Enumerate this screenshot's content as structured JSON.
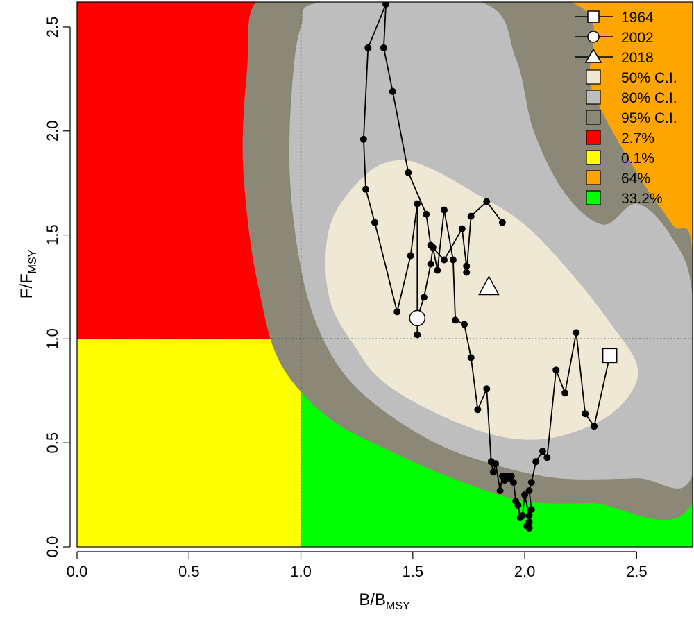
{
  "chart_data": {
    "type": "scatter",
    "subtype": "kobe-phase-plot",
    "xlabel": {
      "main": "B/B",
      "sub": "MSY"
    },
    "ylabel": {
      "main": "F/F",
      "sub": "MSY"
    },
    "xlim": [
      0,
      2.75
    ],
    "ylim": [
      0,
      2.62
    ],
    "x_ticks": [
      0.0,
      0.5,
      1.0,
      1.5,
      2.0,
      2.5
    ],
    "x_tick_labels": [
      "0.0",
      "0.5",
      "1.0",
      "1.5",
      "2.0",
      "2.5"
    ],
    "y_ticks": [
      0.0,
      0.5,
      1.0,
      1.5,
      2.0,
      2.5
    ],
    "y_tick_labels": [
      "0.0",
      "0.5",
      "1.0",
      "1.5",
      "2.0",
      "2.5"
    ],
    "reference_lines": {
      "x": 1.0,
      "y": 1.0,
      "style": "dotted"
    },
    "quadrants": [
      {
        "name": "overfished-overfishing",
        "color": "#ff0000",
        "percent_label": "2.7%"
      },
      {
        "name": "overfished-only",
        "color": "#ffff00",
        "percent_label": "0.1%"
      },
      {
        "name": "overfishing-only",
        "color": "#ffa500",
        "percent_label": "64%"
      },
      {
        "name": "healthy",
        "color": "#00ff00",
        "percent_label": "33.2%"
      }
    ],
    "confidence_regions": [
      {
        "label": "95% C.I.",
        "color": "#8b8878",
        "points": [
          [
            1.06,
            2.62
          ],
          [
            0.8,
            2.62
          ],
          [
            0.76,
            2.3
          ],
          [
            0.74,
            1.9
          ],
          [
            0.77,
            1.5
          ],
          [
            0.82,
            1.2
          ],
          [
            0.88,
            0.95
          ],
          [
            0.98,
            0.77
          ],
          [
            1.15,
            0.6
          ],
          [
            1.4,
            0.46
          ],
          [
            1.7,
            0.32
          ],
          [
            2.0,
            0.22
          ],
          [
            2.3,
            0.21
          ],
          [
            2.75,
            0.22
          ],
          [
            2.75,
            1.4
          ],
          [
            2.66,
            1.55
          ],
          [
            2.5,
            1.8
          ],
          [
            2.3,
            2.2
          ],
          [
            2.2,
            2.62
          ]
        ]
      },
      {
        "label": "80% C.I.",
        "color": "#bebebe",
        "points": [
          [
            1.1,
            2.62
          ],
          [
            1.0,
            2.5
          ],
          [
            0.96,
            2.2
          ],
          [
            0.95,
            1.8
          ],
          [
            0.99,
            1.4
          ],
          [
            1.06,
            1.1
          ],
          [
            1.18,
            0.85
          ],
          [
            1.35,
            0.67
          ],
          [
            1.6,
            0.5
          ],
          [
            1.85,
            0.4
          ],
          [
            2.15,
            0.33
          ],
          [
            2.5,
            0.33
          ],
          [
            2.75,
            0.35
          ],
          [
            2.75,
            1.2
          ],
          [
            2.65,
            1.5
          ],
          [
            2.5,
            1.65
          ],
          [
            2.35,
            1.55
          ],
          [
            2.18,
            1.7
          ],
          [
            2.04,
            2.0
          ],
          [
            1.96,
            2.35
          ],
          [
            1.8,
            2.62
          ]
        ]
      },
      {
        "label": "50% C.I.",
        "color": "#eee8d5",
        "points": [
          [
            1.3,
            1.8
          ],
          [
            1.44,
            1.86
          ],
          [
            1.58,
            1.82
          ],
          [
            1.78,
            1.7
          ],
          [
            2.0,
            1.55
          ],
          [
            2.22,
            1.3
          ],
          [
            2.4,
            1.05
          ],
          [
            2.5,
            0.88
          ],
          [
            2.48,
            0.75
          ],
          [
            2.36,
            0.62
          ],
          [
            2.15,
            0.53
          ],
          [
            1.95,
            0.52
          ],
          [
            1.74,
            0.58
          ],
          [
            1.5,
            0.7
          ],
          [
            1.34,
            0.82
          ],
          [
            1.25,
            0.95
          ],
          [
            1.14,
            1.15
          ],
          [
            1.11,
            1.38
          ],
          [
            1.15,
            1.6
          ]
        ]
      }
    ],
    "series": [
      {
        "name": "trajectory",
        "x": [
          2.38,
          2.31,
          2.27,
          2.23,
          2.18,
          2.14,
          2.1,
          2.08,
          2.05,
          2.03,
          2.02,
          2.03,
          2.02,
          2.02,
          2.01,
          2.02,
          2.0,
          1.99,
          1.98,
          1.97,
          1.96,
          1.95,
          1.94,
          1.93,
          1.92,
          1.91,
          1.9,
          1.89,
          1.87,
          1.86,
          1.85,
          1.83,
          1.79,
          1.76,
          1.73,
          1.69,
          1.68,
          1.64,
          1.61,
          1.59,
          1.58,
          1.55,
          1.52,
          1.52,
          1.52,
          1.49,
          1.43,
          1.33,
          1.29,
          1.28,
          1.3,
          1.38,
          1.37,
          1.41,
          1.48,
          1.56,
          1.58,
          1.64,
          1.72,
          1.74,
          1.74,
          1.76,
          1.83,
          1.9
        ],
        "y": [
          0.92,
          0.58,
          0.64,
          1.03,
          0.74,
          0.85,
          0.43,
          0.46,
          0.41,
          0.31,
          0.27,
          0.18,
          0.12,
          0.09,
          0.1,
          0.15,
          0.25,
          0.15,
          0.14,
          0.2,
          0.22,
          0.31,
          0.34,
          0.33,
          0.34,
          0.32,
          0.34,
          0.27,
          0.4,
          0.36,
          0.41,
          0.76,
          0.66,
          0.91,
          1.07,
          1.09,
          1.38,
          1.62,
          1.33,
          1.44,
          1.36,
          1.2,
          1.1,
          1.02,
          1.65,
          1.4,
          1.13,
          1.56,
          1.72,
          1.96,
          2.4,
          2.61,
          2.4,
          2.19,
          1.8,
          1.6,
          1.45,
          1.38,
          1.53,
          1.35,
          1.32,
          1.59,
          1.66,
          1.56
        ]
      }
    ],
    "markers": [
      {
        "label": "1964",
        "shape": "square",
        "x": 2.38,
        "y": 0.92
      },
      {
        "label": "2002",
        "shape": "circle",
        "x": 1.52,
        "y": 1.1
      },
      {
        "label": "2018",
        "shape": "triangle",
        "x": 1.84,
        "y": 1.25
      }
    ],
    "legend_position": "top-right",
    "legend": [
      {
        "kind": "line-square",
        "label": "1964"
      },
      {
        "kind": "line-circle",
        "label": "2002"
      },
      {
        "kind": "line-triangle",
        "label": "2018"
      },
      {
        "kind": "box",
        "color": "#eee8d5",
        "label": "50% C.I."
      },
      {
        "kind": "box",
        "color": "#bebebe",
        "label": "80% C.I."
      },
      {
        "kind": "box",
        "color": "#8b8878",
        "label": "95% C.I."
      },
      {
        "kind": "box",
        "color": "#ff0000",
        "label": "2.7%"
      },
      {
        "kind": "box",
        "color": "#ffff00",
        "label": "0.1%"
      },
      {
        "kind": "box",
        "color": "#ffa500",
        "label": "64%"
      },
      {
        "kind": "box",
        "color": "#00ff00",
        "label": "33.2%"
      }
    ]
  }
}
